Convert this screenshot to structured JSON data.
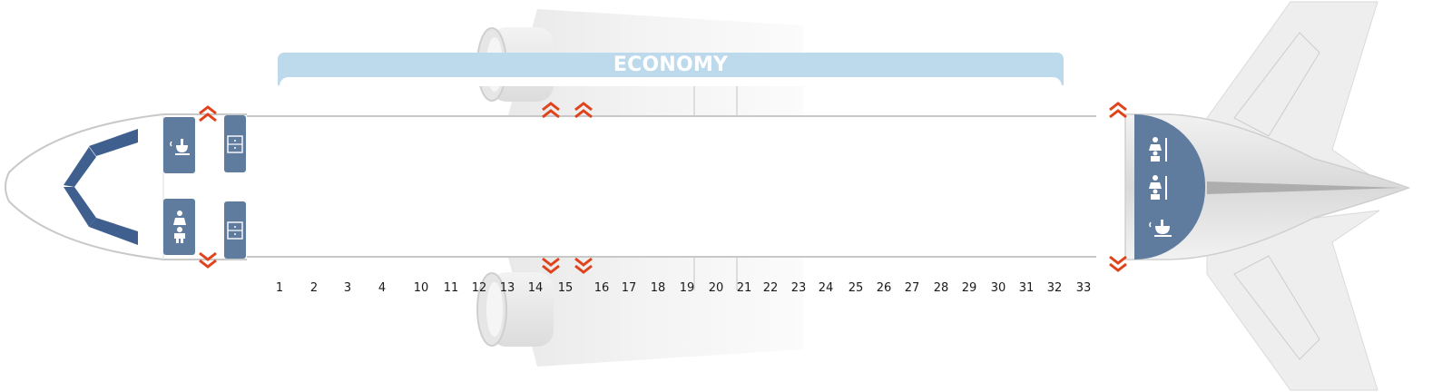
{
  "seat_map": {
    "cabin_class": "ECONOMY",
    "rows": [
      "1",
      "2",
      "3",
      "4",
      "10",
      "11",
      "12",
      "13",
      "14",
      "15",
      "16",
      "17",
      "18",
      "19",
      "20",
      "21",
      "22",
      "23",
      "24",
      "25",
      "26",
      "27",
      "28",
      "29",
      "30",
      "31",
      "32",
      "33"
    ],
    "colors": {
      "cabin_banner": "#bdd9ec",
      "facility": "#5f7b9e",
      "exit_arrow": "#e0431c",
      "cockpit_window": "#3f5f8f"
    },
    "icons": {
      "front_upper": "galley-icon",
      "front_lower": "lavatory-icon",
      "closet": "closet-icon",
      "rear": [
        "lavatory-icon",
        "lavatory-icon",
        "galley-icon"
      ],
      "exit": "exit-arrow-icon"
    }
  }
}
